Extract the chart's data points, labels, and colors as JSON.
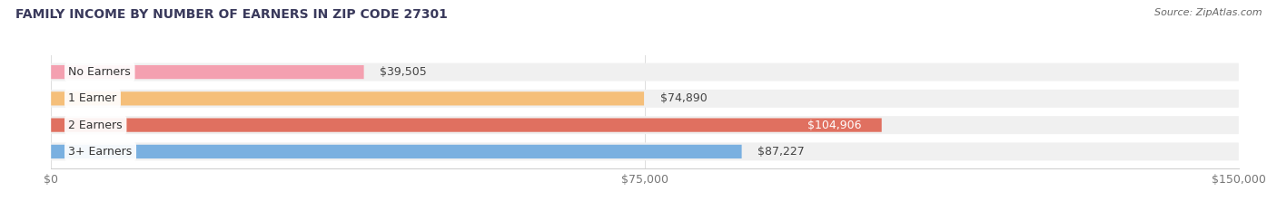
{
  "title": "FAMILY INCOME BY NUMBER OF EARNERS IN ZIP CODE 27301",
  "source": "Source: ZipAtlas.com",
  "categories": [
    "No Earners",
    "1 Earner",
    "2 Earners",
    "3+ Earners"
  ],
  "values": [
    39505,
    74890,
    104906,
    87227
  ],
  "bar_colors": [
    "#f4a0b0",
    "#f5bf7a",
    "#e07060",
    "#7ab0e0"
  ],
  "track_color": "#f0f0f0",
  "label_bg_colors": [
    "#f4a0b0",
    "#f5bf7a",
    "#e07060",
    "#7ab0e0"
  ],
  "value_label_colors": [
    "#444444",
    "#444444",
    "#ffffff",
    "#444444"
  ],
  "xlim": [
    0,
    150000
  ],
  "xticks": [
    0,
    75000,
    150000
  ],
  "xtick_labels": [
    "$0",
    "$75,000",
    "$150,000"
  ],
  "title_fontsize": 10,
  "source_fontsize": 8,
  "bar_label_fontsize": 9,
  "value_label_fontsize": 9,
  "xtick_fontsize": 9,
  "background_color": "#ffffff",
  "title_color": "#3a3a5c",
  "source_color": "#666666"
}
